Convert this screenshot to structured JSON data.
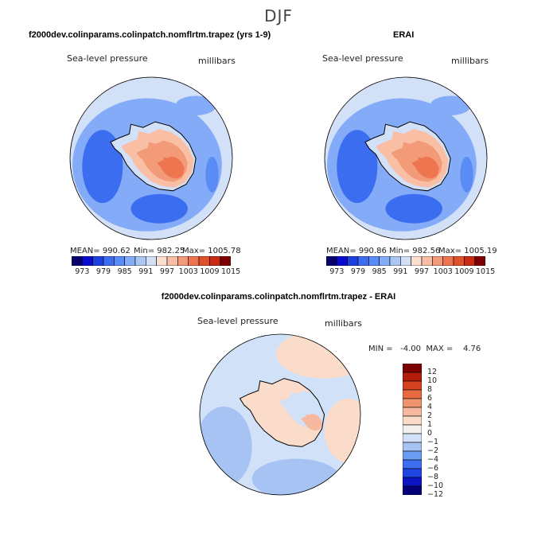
{
  "main_title": "DJF",
  "colors": {
    "abs_scale": [
      "#08006e",
      "#0c0ad1",
      "#1f3fe0",
      "#3a6df0",
      "#5a8cf6",
      "#84abf7",
      "#aac6f5",
      "#d2e1f7",
      "#fbdfd1",
      "#f9bfa4",
      "#f39a78",
      "#ee7550",
      "#e0522b",
      "#c92a14",
      "#7d0000"
    ],
    "diff_scale": [
      "#03007a",
      "#0c14c4",
      "#1f45e3",
      "#3e6ef0",
      "#6d9cf4",
      "#a6c3f4",
      "#d1e2f8",
      "#f4f0ee",
      "#fbdbc9",
      "#f6b89f",
      "#f0946f",
      "#e86a43",
      "#d4421f",
      "#b31d0c",
      "#7d0000"
    ]
  },
  "chart_data": [
    {
      "type": "heatmap",
      "name": "model",
      "title": "f2000dev.colinparams.colinpatch.nomflrtm.trapez (yrs 1-9)",
      "variable": "Sea-level pressure",
      "units": "millibars",
      "mean": "MEAN= 990.62",
      "min": "Min= 982.25",
      "max": "Max= 1005.78",
      "colorbar_ticks": [
        "973",
        "979",
        "985",
        "991",
        "997",
        "1003",
        "1009",
        "1015"
      ]
    },
    {
      "type": "heatmap",
      "name": "erai",
      "title": "ERAI",
      "variable": "Sea-level pressure",
      "units": "millibars",
      "mean": "MEAN= 990.86",
      "min": "Min= 982.56",
      "max": "Max= 1005.19",
      "colorbar_ticks": [
        "973",
        "979",
        "985",
        "991",
        "997",
        "1003",
        "1009",
        "1015"
      ]
    },
    {
      "type": "heatmap",
      "name": "difference",
      "title": "f2000dev.colinparams.colinpatch.nomflrtm.trapez - ERAI",
      "variable": "Sea-level pressure",
      "units": "millibars",
      "minmax": "MIN =   -4.00  MAX =    4.76",
      "colorbar_ticks": [
        "12",
        "10",
        "8",
        "6",
        "4",
        "2",
        "1",
        "0",
        "−1",
        "−2",
        "−4",
        "−6",
        "−8",
        "−10",
        "−12"
      ]
    }
  ]
}
